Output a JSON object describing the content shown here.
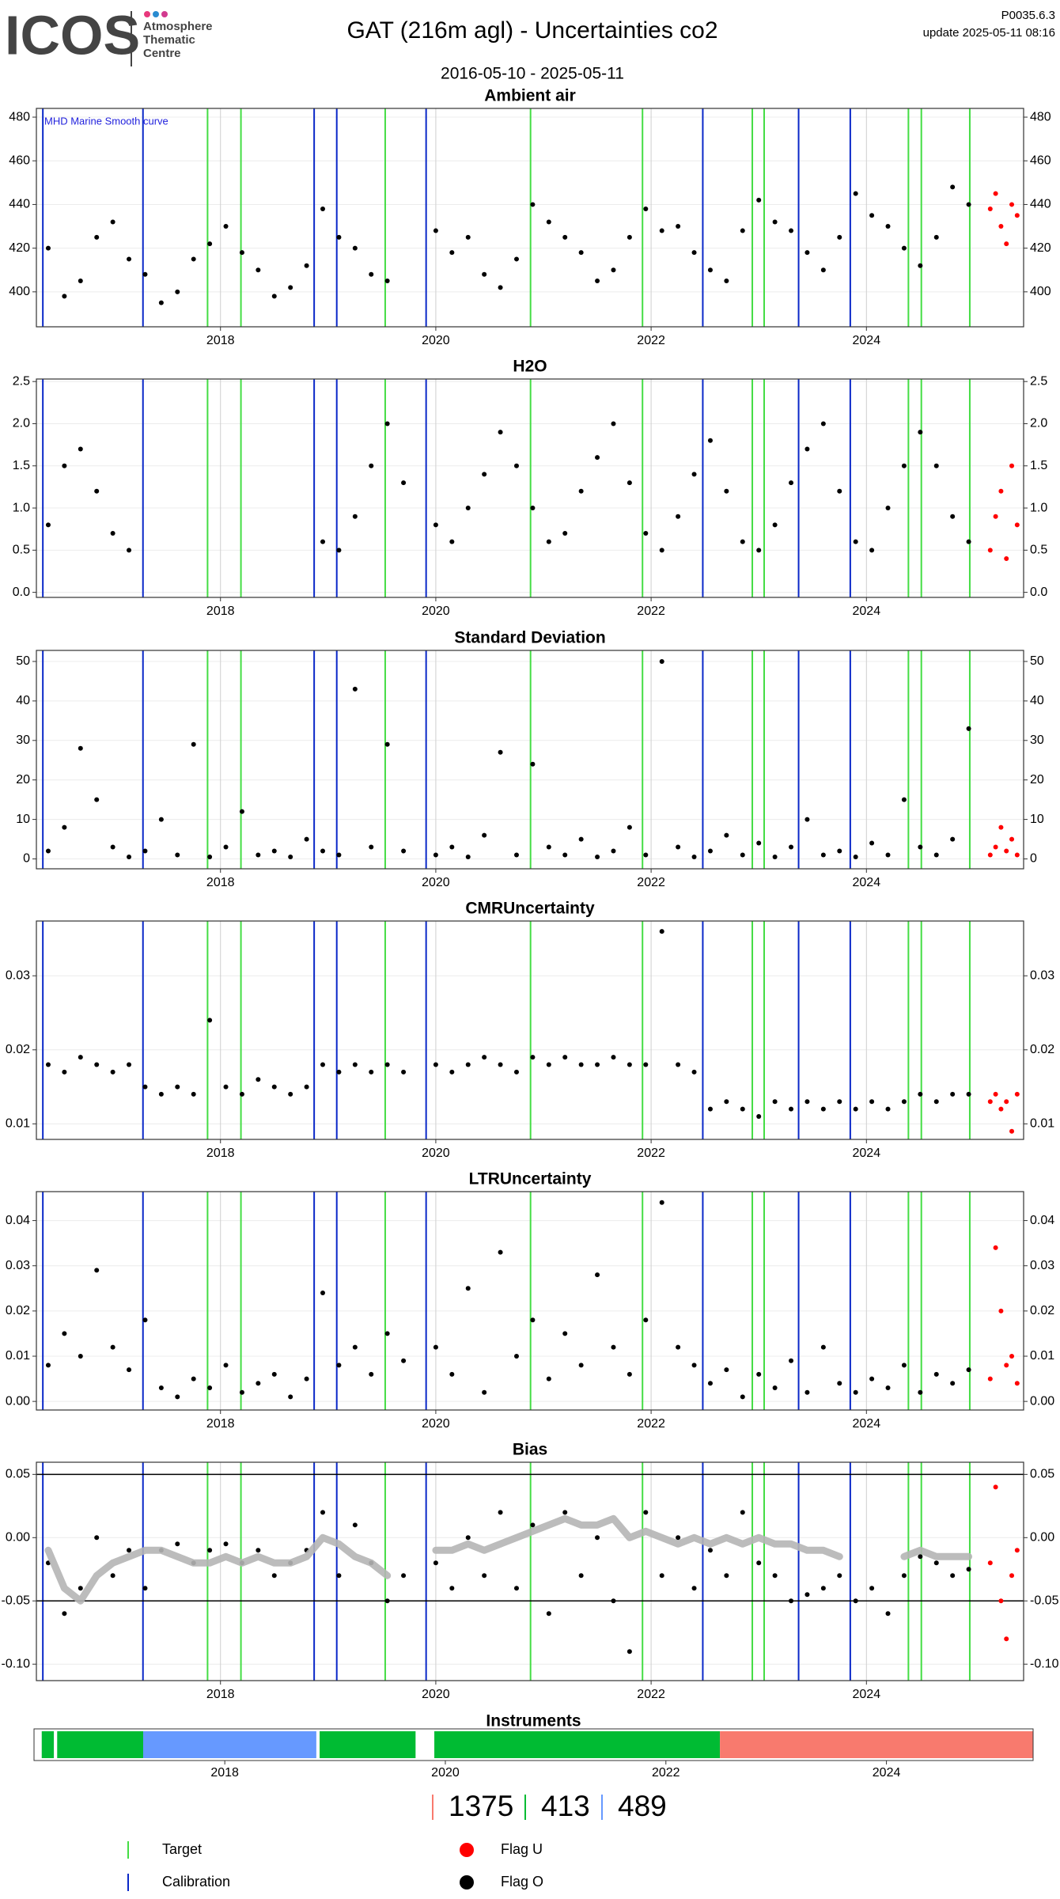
{
  "header": {
    "logo": "ICOS",
    "logo_lines": [
      "Atmosphere",
      "Thematic",
      "Centre"
    ],
    "title": "GAT  (216m agl) - Uncertainties co2",
    "version": "P0035.6.3",
    "update": "update  2025-05-11 08:16",
    "date_range": "2016-05-10 - 2025-05-11"
  },
  "shared": {
    "xlim": [
      2016.29,
      2025.46
    ],
    "xticks": [
      2018,
      2020,
      2022,
      2024
    ],
    "x": [
      2016.4,
      2016.55,
      2016.7,
      2016.85,
      2017.0,
      2017.15,
      2017.3,
      2017.45,
      2017.6,
      2017.75,
      2017.9,
      2018.05,
      2018.2,
      2018.35,
      2018.5,
      2018.65,
      2018.8,
      2018.95,
      2019.1,
      2019.25,
      2019.4,
      2019.55,
      2019.7,
      2019.85,
      2020.0,
      2020.15,
      2020.3,
      2020.45,
      2020.6,
      2020.75,
      2020.9,
      2021.05,
      2021.2,
      2021.35,
      2021.5,
      2021.65,
      2021.8,
      2021.95,
      2022.1,
      2022.25,
      2022.4,
      2022.55,
      2022.7,
      2022.85,
      2023.0,
      2023.15,
      2023.3,
      2023.45,
      2023.6,
      2023.75,
      2023.9,
      2024.05,
      2024.2,
      2024.35,
      2024.5,
      2024.65,
      2024.8,
      2024.95
    ],
    "red_x": [
      2025.15,
      2025.2,
      2025.25,
      2025.3,
      2025.35,
      2025.4
    ],
    "flags": [
      {
        "name": "Flag U",
        "color": "#ff0000"
      },
      {
        "name": "Flag O",
        "color": "#000000"
      }
    ],
    "events": [
      {
        "name": "Target",
        "color": "#44dd44",
        "x": [
          2017.88,
          2018.19,
          2019.53,
          2020.88,
          2021.92,
          2022.94,
          2023.05,
          2024.39,
          2024.51,
          2024.96
        ]
      },
      {
        "name": "Calibration",
        "color": "#0a28c8",
        "x": [
          2016.35,
          2017.28,
          2018.87,
          2019.08,
          2019.91,
          2022.48,
          2023.37,
          2023.85
        ]
      }
    ]
  },
  "chart_data": [
    {
      "type": "scatter",
      "title": "Ambient air",
      "annotation": "MHD Marine Smooth curve",
      "annotation_color": "#2222dd",
      "ylim": [
        384,
        484
      ],
      "yticks": [
        400,
        420,
        440,
        460,
        480
      ],
      "values": [
        420,
        398,
        405,
        425,
        432,
        415,
        408,
        395,
        400,
        415,
        422,
        430,
        418,
        410,
        398,
        402,
        412,
        438,
        425,
        420,
        408,
        405,
        null,
        null,
        428,
        418,
        425,
        408,
        402,
        415,
        440,
        432,
        425,
        418,
        405,
        410,
        425,
        438,
        428,
        430,
        418,
        410,
        405,
        428,
        442,
        432,
        428,
        418,
        410,
        425,
        445,
        435,
        430,
        420,
        412,
        425,
        448,
        440
      ],
      "red_values": [
        438,
        445,
        430,
        422,
        440,
        435
      ]
    },
    {
      "type": "scatter",
      "title": "H2O",
      "ylim": [
        -0.06,
        2.53
      ],
      "yticks": [
        {
          "value": 0,
          "label": "0.0"
        },
        0.5,
        {
          "value": 1,
          "label": "1.0"
        },
        1.5,
        {
          "value": 2,
          "label": "2.0"
        },
        2.5
      ],
      "values": [
        0.8,
        1.5,
        1.7,
        1.2,
        0.7,
        0.5,
        null,
        null,
        null,
        null,
        null,
        null,
        null,
        null,
        null,
        null,
        null,
        0.6,
        0.5,
        0.9,
        1.5,
        2.0,
        1.3,
        null,
        0.8,
        0.6,
        1.0,
        1.4,
        1.9,
        1.5,
        1.0,
        0.6,
        0.7,
        1.2,
        1.6,
        2.0,
        1.3,
        0.7,
        0.5,
        0.9,
        1.4,
        1.8,
        1.2,
        0.6,
        0.5,
        0.8,
        1.3,
        1.7,
        2.0,
        1.2,
        0.6,
        0.5,
        1.0,
        1.5,
        1.9,
        1.5,
        0.9,
        0.6
      ],
      "red_values": [
        0.5,
        0.9,
        1.2,
        0.4,
        1.5,
        0.8
      ]
    },
    {
      "type": "scatter",
      "title": "Standard Deviation",
      "ylim": [
        -2.5,
        52.8
      ],
      "yticks": [
        0,
        10,
        20,
        30,
        40,
        50
      ],
      "values": [
        2,
        8,
        28,
        15,
        3,
        0.5,
        2,
        10,
        1,
        29,
        0.5,
        3,
        12,
        1,
        2,
        0.5,
        5,
        2,
        1,
        43,
        3,
        29,
        2,
        null,
        1,
        3,
        0.5,
        6,
        27,
        1,
        24,
        3,
        1,
        5,
        0.5,
        2,
        8,
        1,
        50,
        3,
        0.5,
        2,
        6,
        1,
        4,
        0.5,
        3,
        10,
        1,
        2,
        0.5,
        4,
        1,
        15,
        3,
        1,
        5,
        33
      ],
      "red_values": [
        1,
        3,
        8,
        2,
        5,
        1
      ]
    },
    {
      "type": "scatter",
      "title": "CMRUncertainty",
      "ylim": [
        0.0079,
        0.0374
      ],
      "yticks": [
        0.01,
        0.02,
        0.03
      ],
      "values": [
        0.018,
        0.017,
        0.019,
        0.018,
        0.017,
        0.018,
        0.015,
        0.014,
        0.015,
        0.014,
        0.024,
        0.015,
        0.014,
        0.016,
        0.015,
        0.014,
        0.015,
        0.018,
        0.017,
        0.018,
        0.017,
        0.018,
        0.017,
        null,
        0.018,
        0.017,
        0.018,
        0.019,
        0.018,
        0.017,
        0.019,
        0.018,
        0.019,
        0.018,
        0.018,
        0.019,
        0.018,
        0.018,
        0.036,
        0.018,
        0.017,
        0.012,
        0.013,
        0.012,
        0.011,
        0.013,
        0.012,
        0.013,
        0.012,
        0.013,
        0.012,
        0.013,
        0.012,
        0.013,
        0.014,
        0.013,
        0.014,
        0.014
      ],
      "red_values": [
        0.013,
        0.014,
        0.012,
        0.013,
        0.009,
        0.014
      ]
    },
    {
      "type": "scatter",
      "title": "LTRUncertainty",
      "ylim": [
        -0.0019,
        0.0464
      ],
      "yticks": [
        {
          "value": 0,
          "label": "0.00"
        },
        0.01,
        0.02,
        0.03,
        0.04
      ],
      "values": [
        0.008,
        0.015,
        0.01,
        0.029,
        0.012,
        0.007,
        0.018,
        0.003,
        0.001,
        0.005,
        0.003,
        0.008,
        0.002,
        0.004,
        0.006,
        0.001,
        0.005,
        0.024,
        0.008,
        0.012,
        0.006,
        0.015,
        0.009,
        null,
        0.012,
        0.006,
        0.025,
        0.002,
        0.033,
        0.01,
        0.018,
        0.005,
        0.015,
        0.008,
        0.028,
        0.012,
        0.006,
        0.018,
        0.044,
        0.012,
        0.008,
        0.004,
        0.007,
        0.001,
        0.006,
        0.003,
        0.009,
        0.002,
        0.012,
        0.004,
        0.002,
        0.005,
        0.003,
        0.008,
        0.002,
        0.006,
        0.004,
        0.007
      ],
      "red_values": [
        0.005,
        0.034,
        0.02,
        0.008,
        0.01,
        0.004
      ]
    },
    {
      "type": "scatter",
      "title": "Bias",
      "ylim": [
        -0.113,
        0.0596
      ],
      "yticks": [
        {
          "value": -0.1,
          "label": "-0.10"
        },
        -0.05,
        {
          "value": 0,
          "label": "0.00"
        },
        0.05
      ],
      "hlines": [
        0.05,
        -0.05
      ],
      "values": [
        -0.02,
        -0.06,
        -0.04,
        0.0,
        -0.03,
        -0.01,
        -0.04,
        -0.01,
        -0.005,
        -0.02,
        -0.01,
        -0.005,
        -0.02,
        -0.01,
        -0.03,
        -0.02,
        -0.01,
        0.02,
        -0.03,
        0.01,
        -0.02,
        -0.05,
        -0.03,
        null,
        -0.02,
        -0.04,
        0.0,
        -0.03,
        0.02,
        -0.04,
        0.01,
        -0.06,
        0.02,
        -0.03,
        0.0,
        -0.05,
        -0.09,
        0.02,
        -0.03,
        0.0,
        -0.04,
        -0.01,
        -0.03,
        0.02,
        -0.02,
        -0.03,
        -0.05,
        -0.045,
        -0.04,
        -0.03,
        -0.05,
        -0.04,
        -0.06,
        -0.03,
        -0.015,
        -0.02,
        -0.03,
        -0.025
      ],
      "red_values": [
        -0.02,
        0.04,
        -0.05,
        -0.08,
        -0.03,
        -0.01
      ],
      "smooth": {
        "color": "#b5b5b5",
        "values": [
          -0.01,
          -0.04,
          -0.05,
          -0.03,
          -0.02,
          -0.015,
          -0.01,
          -0.01,
          -0.015,
          -0.02,
          -0.02,
          -0.015,
          -0.02,
          -0.015,
          -0.02,
          -0.02,
          -0.015,
          0.0,
          -0.005,
          -0.015,
          -0.02,
          -0.03,
          null,
          null,
          -0.01,
          -0.01,
          -0.005,
          -0.01,
          -0.005,
          0.0,
          0.005,
          0.01,
          0.015,
          0.01,
          0.01,
          0.015,
          0.0,
          0.005,
          0.0,
          -0.005,
          0.0,
          -0.005,
          0.0,
          -0.005,
          0.0,
          -0.005,
          -0.005,
          -0.01,
          -0.01,
          -0.015,
          null,
          null,
          null,
          -0.015,
          -0.01,
          -0.015,
          -0.015,
          -0.015
        ]
      }
    }
  ],
  "instruments": {
    "title": "Instruments",
    "xlim": [
      2016.27,
      2025.33
    ],
    "xticks": [
      2018,
      2020,
      2022,
      2024
    ],
    "segments": [
      {
        "start": 2016.34,
        "end": 2016.45,
        "color": "#00bb33"
      },
      {
        "start": 2016.48,
        "end": 2017.26,
        "color": "#00bb33"
      },
      {
        "start": 2017.26,
        "end": 2018.83,
        "color": "#6699ff"
      },
      {
        "start": 2018.86,
        "end": 2019.73,
        "color": "#00bb33"
      },
      {
        "start": 2019.9,
        "end": 2022.49,
        "color": "#00bb33"
      },
      {
        "start": 2022.49,
        "end": 2025.33,
        "color": "#f87a6e"
      }
    ],
    "counts": [
      {
        "value": 1375,
        "color": "#f87a6e"
      },
      {
        "value": 413,
        "color": "#00bb33"
      },
      {
        "value": 489,
        "color": "#6699ff"
      }
    ]
  }
}
